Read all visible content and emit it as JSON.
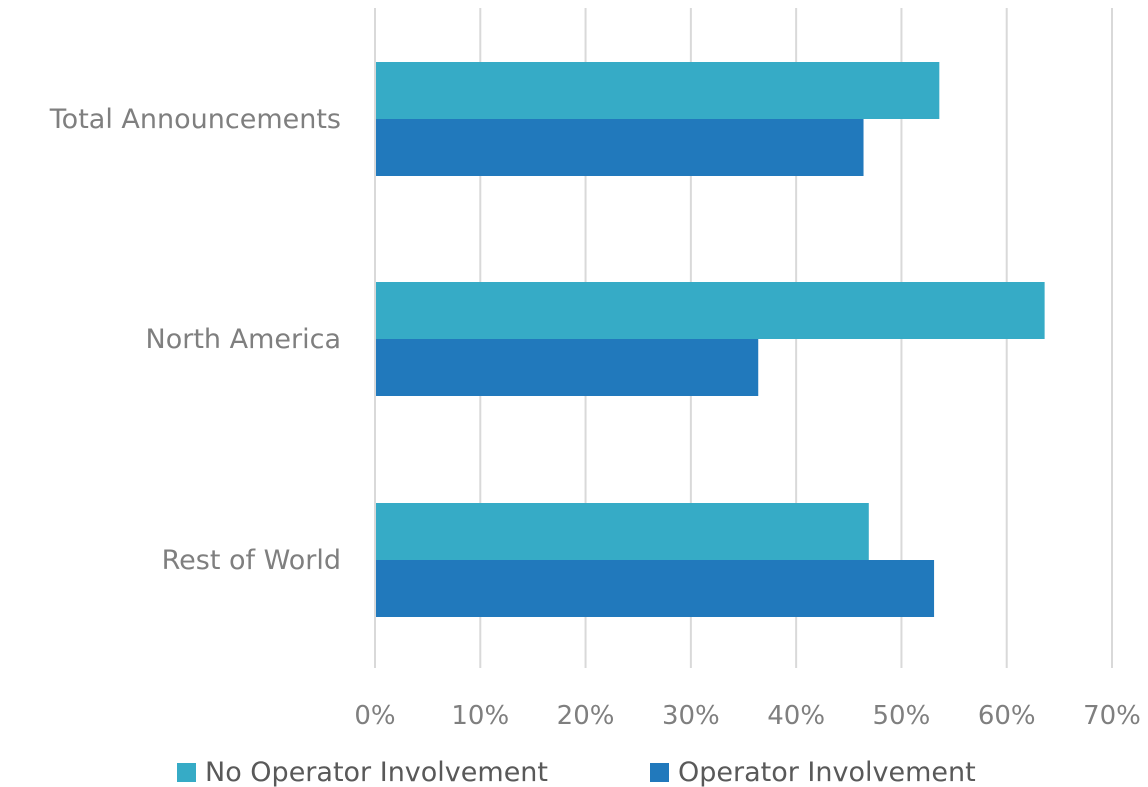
{
  "chart_data": {
    "type": "bar",
    "orientation": "horizontal",
    "categories": [
      "Total Announcements",
      "North America",
      "Rest of World"
    ],
    "series": [
      {
        "name": "No Operator Involvement",
        "color": "#36abc6",
        "values": [
          53.6,
          63.6,
          46.9
        ]
      },
      {
        "name": "Operator Involvement",
        "color": "#2179bc",
        "values": [
          46.4,
          36.4,
          53.1
        ]
      }
    ],
    "xlim": [
      0,
      70
    ],
    "x_ticks": [
      0,
      10,
      20,
      30,
      40,
      50,
      60,
      70
    ],
    "x_tick_labels": [
      "0%",
      "10%",
      "20%",
      "30%",
      "40%",
      "50%",
      "60%",
      "70%"
    ],
    "grid": true,
    "legend_position": "bottom"
  }
}
